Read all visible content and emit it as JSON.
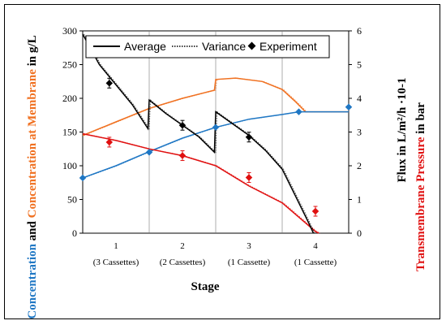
{
  "chart_data": {
    "type": "line",
    "xlabel": "Stage",
    "left_axis": {
      "ylim": [
        0,
        300
      ],
      "ticks": [
        "0",
        "50",
        "100",
        "150",
        "200",
        "250",
        "300"
      ],
      "title_parts": [
        {
          "text": "Concentration",
          "color": "#1f77c4"
        },
        {
          "text": " and ",
          "color": "#000000"
        },
        {
          "text": "Concentration at Membrane",
          "color": "#f07020"
        },
        {
          "text": " in  g/L",
          "color": "#000000"
        }
      ]
    },
    "right_axis": {
      "ylim": [
        0,
        6
      ],
      "ticks": [
        "0",
        "1",
        "2",
        "3",
        "4",
        "5",
        "6"
      ],
      "title_a": "Flux in  L/m²/h ·10-1",
      "title_b_parts": [
        {
          "text": "Transmembrane Pressure",
          "color": "#e01010"
        },
        {
          "text": " in bar",
          "color": "#000000"
        }
      ]
    },
    "xlim": [
      0,
      4
    ],
    "stage_boundaries": [
      1,
      2,
      3
    ],
    "stage_labels": [
      {
        "num": "1",
        "sub": "(3 Cassettes)"
      },
      {
        "num": "2",
        "sub": "(2 Cassettes)"
      },
      {
        "num": "3",
        "sub": "(1 Cassette)"
      },
      {
        "num": "4",
        "sub": "(1 Cassette)"
      }
    ],
    "legend": {
      "average": "Average",
      "variance": "Variance",
      "experiment": "Experiment"
    },
    "colors": {
      "flux": "#000000",
      "concentration": "#1f77c4",
      "membrane": "#f07020",
      "tmp": "#e01010"
    },
    "series": {
      "flux_right_axis": [
        [
          0.0,
          5.9
        ],
        [
          0.25,
          5.0
        ],
        [
          0.5,
          4.4
        ],
        [
          0.75,
          3.8
        ],
        [
          0.98,
          3.1
        ],
        [
          1.0,
          3.95
        ],
        [
          1.25,
          3.55
        ],
        [
          1.5,
          3.2
        ],
        [
          1.75,
          2.85
        ],
        [
          1.98,
          2.4
        ],
        [
          2.0,
          3.6
        ],
        [
          2.25,
          3.25
        ],
        [
          2.5,
          2.9
        ],
        [
          2.75,
          2.45
        ],
        [
          3.0,
          1.9
        ],
        [
          3.2,
          1.1
        ],
        [
          3.4,
          0.3
        ],
        [
          3.47,
          0.0
        ]
      ],
      "concentration": [
        [
          0.0,
          82
        ],
        [
          0.5,
          100
        ],
        [
          1.0,
          121
        ],
        [
          1.5,
          141
        ],
        [
          2.0,
          157
        ],
        [
          2.5,
          169
        ],
        [
          3.0,
          176
        ],
        [
          3.25,
          180
        ],
        [
          4.0,
          180
        ]
      ],
      "membrane": [
        [
          0.0,
          145
        ],
        [
          0.5,
          165
        ],
        [
          1.0,
          185
        ],
        [
          1.5,
          200
        ],
        [
          1.98,
          212
        ],
        [
          2.0,
          228
        ],
        [
          2.3,
          230
        ],
        [
          2.7,
          225
        ],
        [
          3.0,
          213
        ],
        [
          3.2,
          195
        ],
        [
          3.35,
          180
        ],
        [
          4.0,
          180
        ]
      ],
      "tmp_right_axis": [
        [
          0.0,
          2.95
        ],
        [
          0.5,
          2.75
        ],
        [
          1.0,
          2.5
        ],
        [
          1.5,
          2.3
        ],
        [
          2.0,
          2.0
        ],
        [
          2.5,
          1.4
        ],
        [
          3.0,
          0.9
        ],
        [
          3.5,
          0.05
        ],
        [
          3.55,
          0.0
        ]
      ]
    },
    "experiment": {
      "flux_right_axis": [
        [
          0.4,
          4.45
        ],
        [
          1.5,
          3.2
        ],
        [
          2.5,
          2.85
        ]
      ],
      "concentration": [
        [
          3.25,
          180
        ],
        [
          4.0,
          187
        ],
        [
          1.0,
          120
        ],
        [
          2.0,
          157
        ],
        [
          0.0,
          82
        ]
      ],
      "tmp_right_axis": [
        [
          0.4,
          2.7
        ],
        [
          1.5,
          2.3
        ],
        [
          2.5,
          1.65
        ],
        [
          3.5,
          0.65
        ]
      ]
    }
  }
}
